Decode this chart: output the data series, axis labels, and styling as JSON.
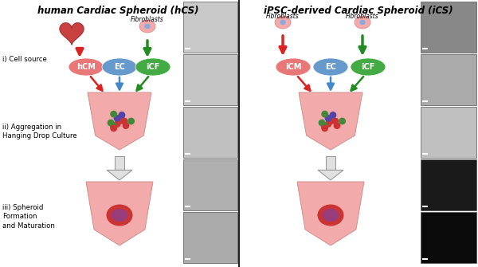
{
  "title_left": "human Cardiac Spheroid (hCS)",
  "title_right": "iPSC-derived Cardiac Spheroid (iCS)",
  "bg_color": "#ffffff",
  "pink_color": "#F2AAAA",
  "red_color": "#DD2222",
  "blue_color": "#4488CC",
  "green_color": "#228B22",
  "hcm_color": "#E87878",
  "ec_color": "#6699CC",
  "icf_color": "#44AA44",
  "fibroblasts_label": "Fibroblasts",
  "arrow_fill": "#E0E0E0",
  "arrow_edge": "#999999",
  "divider_color": "#222222",
  "micro_left": [
    "#C8C8C8",
    "#C5C5C5",
    "#C0C0C0",
    "#B0B0B0",
    "#AAAAAA"
  ],
  "micro_right_dark": [
    "#909090",
    "#AAAAAA",
    "#CCCCCC",
    "#222222",
    "#111111"
  ],
  "label_i": "i) Cell source",
  "label_ii": "ii) Aggregation in\nHanging Drop Culture",
  "label_iii": "iii) Spheroid\nFormation\nand Maturation"
}
